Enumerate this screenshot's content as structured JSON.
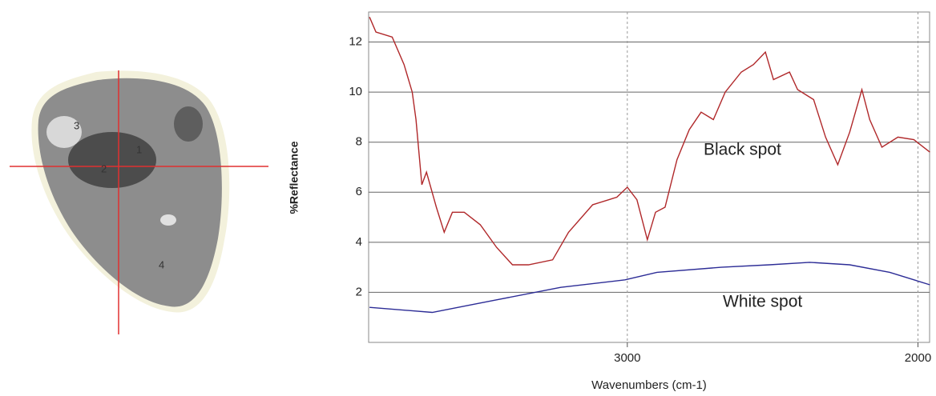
{
  "image": {
    "labels": [
      "1",
      "2",
      "3",
      "4"
    ]
  },
  "chart_data": {
    "type": "line",
    "xlabel": "Wavenumbers (cm-1)",
    "ylabel": "%Reflectance",
    "xlim": [
      3890,
      1960
    ],
    "ylim": [
      0,
      13.2
    ],
    "xticks": [
      3000,
      2000
    ],
    "yticks": [
      2,
      4,
      6,
      8,
      10,
      12
    ],
    "grid": true,
    "series": [
      {
        "name": "Black spot",
        "color": "#b0282a",
        "x": [
          3887,
          3865,
          3809,
          3768,
          3740,
          3727,
          3707,
          3691,
          3657,
          3630,
          3602,
          3561,
          3506,
          3450,
          3395,
          3340,
          3257,
          3202,
          3119,
          3036,
          3000,
          2967,
          2931,
          2903,
          2870,
          2829,
          2787,
          2746,
          2704,
          2663,
          2608,
          2566,
          2525,
          2497,
          2442,
          2414,
          2359,
          2318,
          2276,
          2235,
          2193,
          2166,
          2124,
          2069,
          2014,
          1959
        ],
        "values": [
          13.0,
          12.4,
          12.2,
          11.1,
          10.0,
          8.9,
          6.3,
          6.8,
          5.4,
          4.4,
          5.2,
          5.2,
          4.7,
          3.8,
          3.1,
          3.1,
          3.3,
          4.4,
          5.5,
          5.8,
          6.2,
          5.7,
          4.1,
          5.2,
          5.4,
          7.3,
          8.5,
          9.2,
          8.9,
          10.0,
          10.8,
          11.1,
          11.6,
          10.5,
          10.8,
          10.1,
          9.7,
          8.2,
          7.1,
          8.4,
          10.1,
          8.9,
          7.8,
          8.2,
          8.1,
          7.6
        ]
      },
      {
        "name": "White spot",
        "color": "#2c2c96",
        "x": [
          3887,
          3671,
          3450,
          3229,
          3008,
          2898,
          2677,
          2511,
          2373,
          2235,
          2097,
          1959
        ],
        "values": [
          1.4,
          1.2,
          1.7,
          2.2,
          2.5,
          2.8,
          3.0,
          3.1,
          3.2,
          3.1,
          2.8,
          2.3
        ]
      }
    ]
  }
}
